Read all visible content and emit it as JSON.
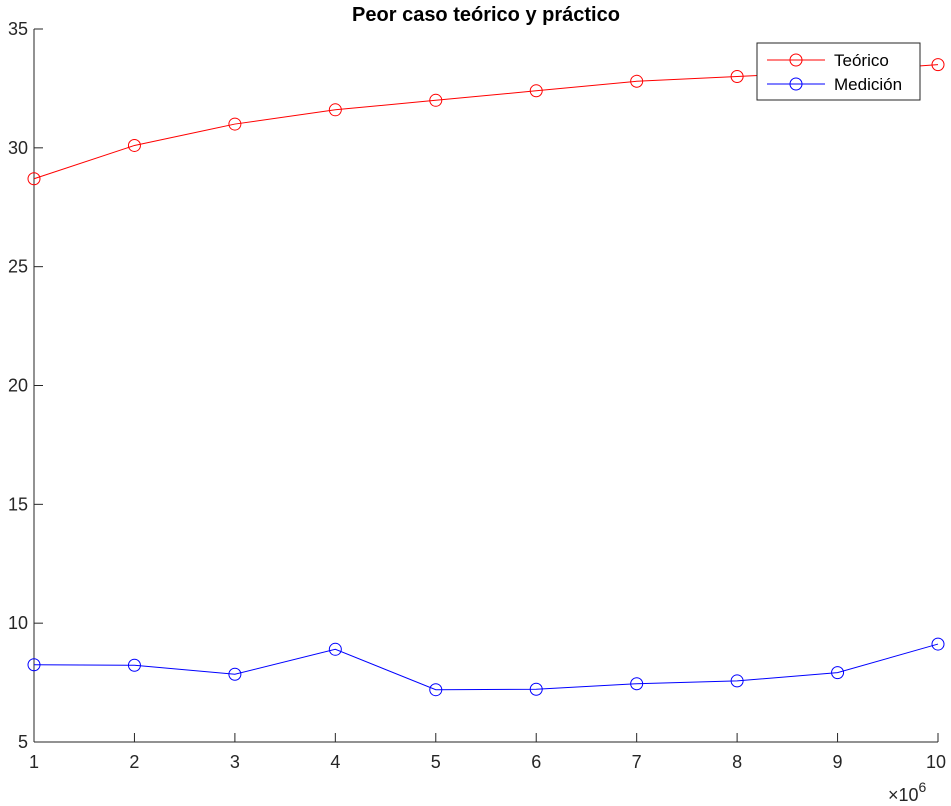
{
  "chart_data": {
    "type": "line",
    "title": "Peor caso teórico y práctico",
    "xlabel": "",
    "ylabel": "",
    "x": [
      1,
      2,
      3,
      4,
      5,
      6,
      7,
      8,
      9,
      10
    ],
    "x_ticks": [
      "1",
      "2",
      "3",
      "4",
      "5",
      "6",
      "7",
      "8",
      "9",
      "10"
    ],
    "x_exponent_label": "×10",
    "x_exponent_power": "6",
    "xlim": [
      1,
      10
    ],
    "y_ticks": [
      "5",
      "10",
      "15",
      "20",
      "25",
      "30",
      "35"
    ],
    "ylim": [
      5,
      35
    ],
    "grid": false,
    "legend_position": "top-right",
    "series": [
      {
        "name": "Teórico",
        "color": "#ff0000",
        "marker": "circle",
        "values": [
          28.7,
          30.1,
          31.0,
          31.6,
          32.0,
          32.4,
          32.8,
          33.0,
          33.2,
          33.5
        ]
      },
      {
        "name": "Medición",
        "color": "#0000ff",
        "marker": "circle",
        "values": [
          8.25,
          8.23,
          7.85,
          8.9,
          7.2,
          7.22,
          7.45,
          7.57,
          7.92,
          9.12
        ]
      }
    ]
  }
}
